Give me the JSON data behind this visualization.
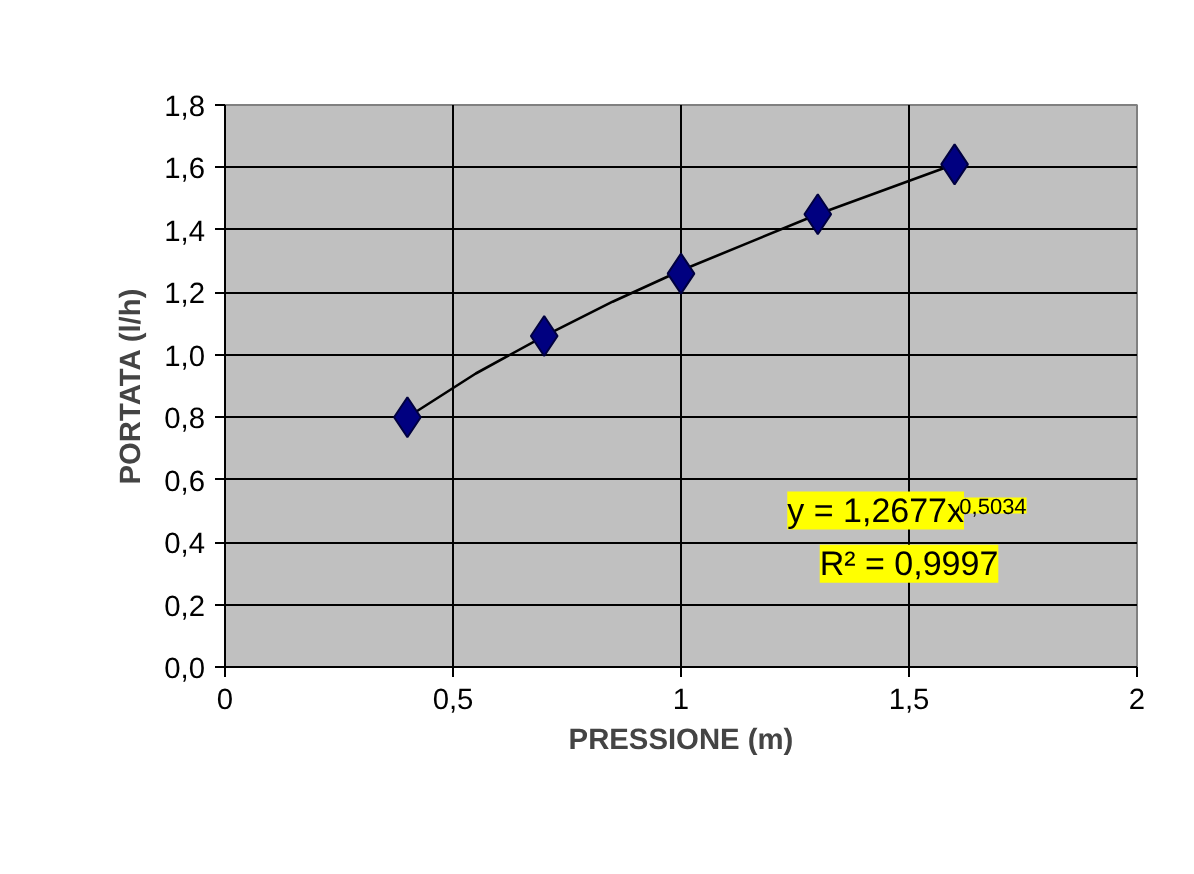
{
  "chart_data": {
    "type": "scatter",
    "xlabel": "PRESSIONE (m)",
    "ylabel": "PORTATA (l/h)",
    "series": [
      {
        "type": "line",
        "color": "#000000",
        "x": [
          0.4,
          0.55,
          0.7,
          0.85,
          1.0,
          1.15,
          1.3,
          1.45,
          1.6
        ],
        "values": [
          0.8,
          0.94,
          1.06,
          1.17,
          1.27,
          1.36,
          1.45,
          1.53,
          1.61
        ],
        "marker": "none"
      },
      {
        "color": "#000080",
        "x": [
          0.4,
          0.7,
          1.0,
          1.3,
          1.6
        ],
        "values": [
          0.8,
          1.06,
          1.26,
          1.45,
          1.61
        ],
        "marker": "diamond"
      }
    ],
    "xlim": [
      0,
      2
    ],
    "ylim": [
      0,
      1.8
    ],
    "xticks": [
      0,
      {
        "value": 0.5,
        "label": "0,5"
      },
      1,
      {
        "value": 1.5,
        "label": "1,5"
      },
      2
    ],
    "yticks": [
      {
        "value": 0,
        "label": "0,0"
      },
      {
        "value": 0.2,
        "label": "0,2"
      },
      {
        "value": 0.4,
        "label": "0,4"
      },
      {
        "value": 0.6,
        "label": "0,6"
      },
      {
        "value": 0.8,
        "label": "0,8"
      },
      {
        "value": 1.0,
        "label": "1,0"
      },
      {
        "value": 1.2,
        "label": "1,2"
      },
      {
        "value": 1.4,
        "label": "1,4"
      },
      {
        "value": 1.6,
        "label": "1,6"
      },
      {
        "value": 1.8,
        "label": "1,8"
      }
    ],
    "grid": true,
    "annotations": [
      "y = 1,2677x$^{0,5034}$",
      "R² = 0,9997"
    ]
  }
}
